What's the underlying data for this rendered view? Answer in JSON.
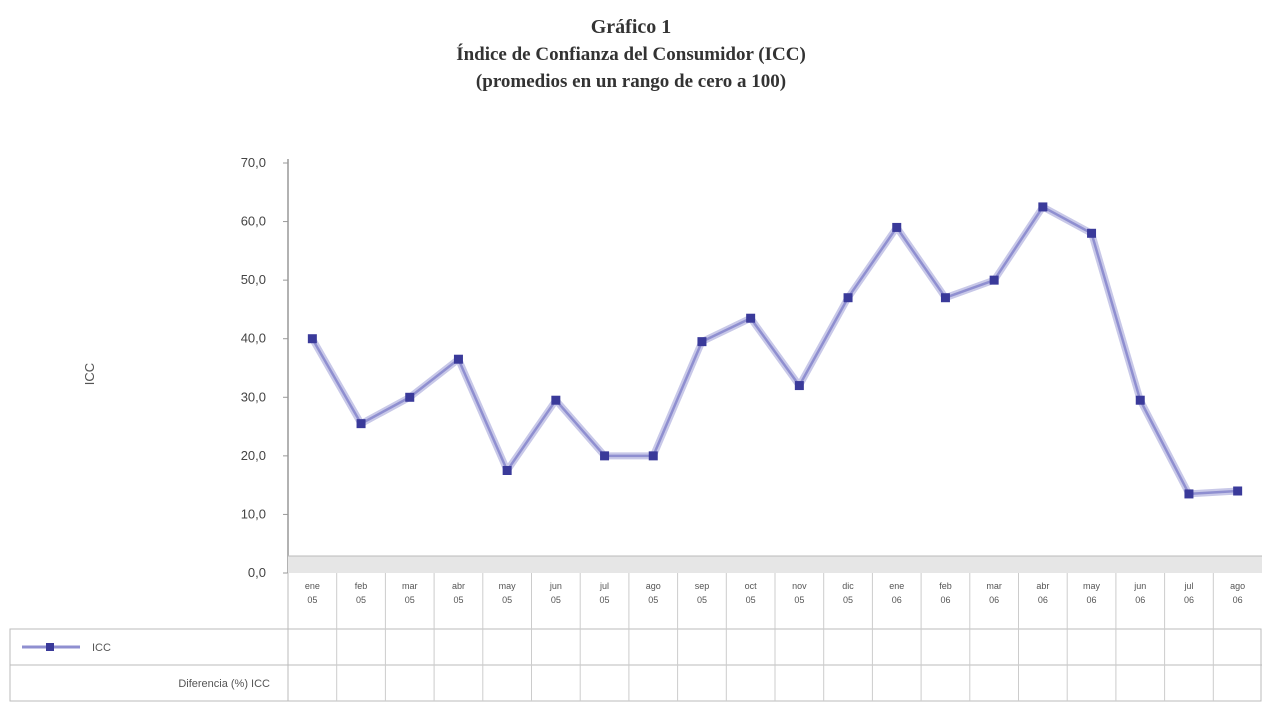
{
  "chart_data": {
    "type": "line",
    "title": "Gráfico 1",
    "subtitle": "Índice de Confianza del Consumidor (ICC)",
    "subtitle2": "(promedios en un rango de cero a 100)",
    "ylabel": "ICC",
    "ylim": [
      0,
      70
    ],
    "yticks": [
      "0,0",
      "10,0",
      "20,0",
      "30,0",
      "40,0",
      "50,0",
      "60,0",
      "70,0"
    ],
    "grid": false,
    "legend": "table-bottom-left",
    "line_color": "#3a3a9a",
    "categories": [
      "ene 05",
      "feb 05",
      "mar 05",
      "abr 05",
      "may 05",
      "jun 05",
      "jul 05",
      "ago 05",
      "sep 05",
      "oct 05",
      "nov 05",
      "dic 05",
      "ene 06",
      "feb 06",
      "mar 06",
      "abr 06",
      "may 06",
      "jun 06",
      "jul 06",
      "ago 06"
    ],
    "series": [
      {
        "name": "ICC",
        "values": [
          40.0,
          25.5,
          30.0,
          36.5,
          17.5,
          29.5,
          20.0,
          20.0,
          39.5,
          43.5,
          32.0,
          47.0,
          59.0,
          47.0,
          50.0,
          62.5,
          58.0,
          29.5,
          13.5,
          14.0
        ]
      }
    ],
    "table_rows": [
      {
        "label": "ICC"
      },
      {
        "label": "Diferencia (%) ICC"
      }
    ]
  }
}
